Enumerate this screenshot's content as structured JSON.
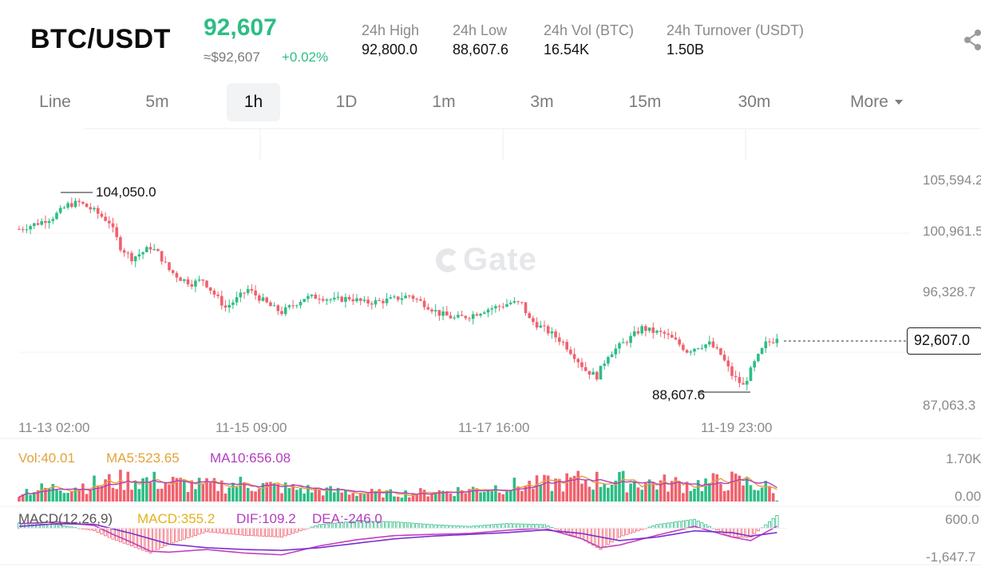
{
  "header": {
    "pair": "BTC/USDT",
    "last_price": "92,607",
    "approx_usd": "≈$92,607",
    "change_pct": "+0.02%",
    "stats": [
      {
        "label": "24h High",
        "value": "92,800.0"
      },
      {
        "label": "24h Low",
        "value": "88,607.6"
      },
      {
        "label": "24h Vol (BTC)",
        "value": "16.54K"
      },
      {
        "label": "24h Turnover (USDT)",
        "value": "1.50B"
      }
    ]
  },
  "tabs": [
    {
      "label": "Line"
    },
    {
      "label": "5m"
    },
    {
      "label": "1h"
    },
    {
      "label": "1D"
    },
    {
      "label": "1m"
    },
    {
      "label": "3m"
    },
    {
      "label": "15m"
    },
    {
      "label": "30m"
    },
    {
      "label": "More"
    }
  ],
  "active_tab": "1h",
  "watermark": "Gate",
  "colors": {
    "up": "#2dbd85",
    "down": "#f0616d",
    "ma5": "#e3a33b",
    "ma10": "#b43dc0",
    "vol_label": "#e3a33b",
    "grid": "#eeeeee"
  },
  "icons": {
    "share": "share-icon",
    "more_caret": "caret-down-icon"
  },
  "chart_data": [
    {
      "type": "candlestick",
      "interval": "1h",
      "x_ticks": [
        "11-13 02:00",
        "11-15 09:00",
        "11-17 16:00",
        "11-19 23:00"
      ],
      "y_ticks": [
        "105,594.2",
        "100,961.5",
        "96,328.7",
        "87,063.3"
      ],
      "ylim": [
        87063.3,
        105594.2
      ],
      "high_marker": "104,050.0",
      "low_marker": "88,607.6",
      "last_price_tag": "92,607.0",
      "close_path": [
        [
          0,
          101700
        ],
        [
          5,
          102200
        ],
        [
          9,
          102700
        ],
        [
          13,
          103700
        ],
        [
          16,
          103900
        ],
        [
          20,
          103200
        ],
        [
          24,
          102300
        ],
        [
          27,
          100200
        ],
        [
          30,
          99300
        ],
        [
          33,
          99800
        ],
        [
          35,
          100200
        ],
        [
          37,
          99700
        ],
        [
          40,
          98300
        ],
        [
          43,
          97600
        ],
        [
          46,
          97200
        ],
        [
          49,
          97500
        ],
        [
          52,
          96300
        ],
        [
          55,
          95200
        ],
        [
          58,
          95900
        ],
        [
          61,
          96700
        ],
        [
          64,
          96000
        ],
        [
          67,
          95300
        ],
        [
          70,
          94800
        ],
        [
          73,
          95400
        ],
        [
          76,
          96000
        ],
        [
          80,
          96100
        ],
        [
          84,
          95800
        ],
        [
          88,
          96000
        ],
        [
          92,
          95600
        ],
        [
          96,
          95700
        ],
        [
          100,
          95900
        ],
        [
          104,
          96200
        ],
        [
          108,
          95500
        ],
        [
          112,
          94700
        ],
        [
          116,
          94300
        ],
        [
          120,
          94500
        ],
        [
          124,
          95000
        ],
        [
          128,
          95300
        ],
        [
          131,
          95600
        ],
        [
          134,
          95500
        ],
        [
          136,
          94200
        ],
        [
          139,
          93600
        ],
        [
          142,
          93000
        ],
        [
          145,
          92300
        ],
        [
          148,
          91200
        ],
        [
          151,
          90000
        ],
        [
          154,
          89500
        ],
        [
          157,
          91300
        ],
        [
          160,
          92000
        ],
        [
          163,
          92700
        ],
        [
          166,
          93500
        ],
        [
          169,
          93200
        ],
        [
          172,
          93000
        ],
        [
          175,
          92400
        ],
        [
          178,
          91600
        ],
        [
          181,
          92000
        ],
        [
          184,
          92200
        ],
        [
          187,
          91300
        ],
        [
          190,
          89600
        ],
        [
          193,
          88700
        ],
        [
          196,
          90600
        ],
        [
          199,
          92200
        ],
        [
          202,
          92607
        ]
      ]
    },
    {
      "type": "bar",
      "name": "Volume",
      "labels": [
        "Vol:40.01",
        "MA5:523.65",
        "MA10:656.08"
      ],
      "y_ticks": [
        "1.70K",
        "0.00"
      ],
      "ylim": [
        0,
        1700
      ],
      "vol_path": [
        [
          0,
          420
        ],
        [
          10,
          560
        ],
        [
          20,
          700
        ],
        [
          30,
          900
        ],
        [
          40,
          760
        ],
        [
          50,
          620
        ],
        [
          60,
          720
        ],
        [
          70,
          560
        ],
        [
          80,
          450
        ],
        [
          90,
          360
        ],
        [
          100,
          320
        ],
        [
          110,
          380
        ],
        [
          120,
          480
        ],
        [
          130,
          620
        ],
        [
          140,
          700
        ],
        [
          150,
          860
        ],
        [
          160,
          820
        ],
        [
          170,
          740
        ],
        [
          180,
          700
        ],
        [
          190,
          820
        ],
        [
          200,
          560
        ]
      ]
    },
    {
      "type": "line",
      "name": "MACD",
      "labels": [
        "MACD(12,26,9)",
        "MACD:355.2",
        "DIF:109.2",
        "DEA:-246.0"
      ],
      "y_ticks": [
        "600.0",
        "-1,647.7"
      ],
      "ylim": [
        -1647.7,
        600
      ],
      "dif_path": [
        [
          0,
          250
        ],
        [
          10,
          350
        ],
        [
          20,
          150
        ],
        [
          25,
          -350
        ],
        [
          30,
          -800
        ],
        [
          35,
          -1300
        ],
        [
          40,
          -1350
        ],
        [
          50,
          -1200
        ],
        [
          60,
          -1400
        ],
        [
          70,
          -1500
        ],
        [
          80,
          -1000
        ],
        [
          90,
          -650
        ],
        [
          100,
          -420
        ],
        [
          110,
          -350
        ],
        [
          120,
          -300
        ],
        [
          130,
          -120
        ],
        [
          140,
          0
        ],
        [
          150,
          -600
        ],
        [
          155,
          -1100
        ],
        [
          160,
          -950
        ],
        [
          170,
          -400
        ],
        [
          180,
          100
        ],
        [
          190,
          -500
        ],
        [
          195,
          -700
        ],
        [
          202,
          109.2
        ]
      ],
      "dea_path": [
        [
          0,
          100
        ],
        [
          10,
          250
        ],
        [
          20,
          220
        ],
        [
          30,
          -300
        ],
        [
          40,
          -900
        ],
        [
          50,
          -1100
        ],
        [
          60,
          -1200
        ],
        [
          70,
          -1250
        ],
        [
          80,
          -1100
        ],
        [
          90,
          -850
        ],
        [
          100,
          -600
        ],
        [
          110,
          -450
        ],
        [
          120,
          -350
        ],
        [
          130,
          -250
        ],
        [
          140,
          -100
        ],
        [
          150,
          -300
        ],
        [
          160,
          -700
        ],
        [
          170,
          -500
        ],
        [
          180,
          -150
        ],
        [
          190,
          -250
        ],
        [
          195,
          -450
        ],
        [
          202,
          -246.0
        ]
      ]
    }
  ]
}
